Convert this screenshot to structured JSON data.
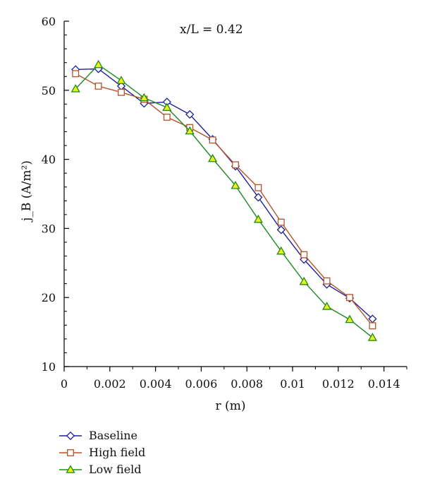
{
  "chart_data": {
    "type": "line",
    "annotation": "x/L = 0.42",
    "xlabel": "r (m)",
    "ylabel": "j_B (A/m²)",
    "xlim": [
      0,
      0.015
    ],
    "ylim": [
      10,
      60
    ],
    "xticks": [
      0,
      0.002,
      0.004,
      0.006,
      0.008,
      0.01,
      0.012,
      0.014
    ],
    "xtick_labels": [
      "0",
      "0.002",
      "0.004",
      "0.006",
      "0.008",
      "0.01",
      "0.012",
      "0.014"
    ],
    "yticks": [
      10,
      20,
      30,
      40,
      50,
      60
    ],
    "ytick_labels": [
      "10",
      "20",
      "30",
      "40",
      "50",
      "60"
    ],
    "grid": false,
    "legend_position": "bottom-left",
    "series": [
      {
        "name": "Baseline",
        "marker": "diamond",
        "color": "#1f1f9e",
        "x": [
          0.0005,
          0.0015,
          0.0025,
          0.0035,
          0.0045,
          0.0055,
          0.0065,
          0.0075,
          0.0085,
          0.0095,
          0.0105,
          0.0115,
          0.0125,
          0.0135
        ],
        "y": [
          53.0,
          53.1,
          50.6,
          48.1,
          48.3,
          46.5,
          42.9,
          39.0,
          34.5,
          29.8,
          25.5,
          21.9,
          19.9,
          16.9
        ]
      },
      {
        "name": "High field",
        "marker": "square",
        "color": "#b5532a",
        "x": [
          0.0005,
          0.0015,
          0.0025,
          0.0035,
          0.0045,
          0.0055,
          0.0065,
          0.0075,
          0.0085,
          0.0095,
          0.0105,
          0.0115,
          0.0125,
          0.0135
        ],
        "y": [
          52.4,
          50.6,
          49.7,
          48.7,
          46.1,
          44.6,
          42.8,
          39.2,
          35.9,
          30.9,
          26.2,
          22.4,
          20.0,
          15.9
        ]
      },
      {
        "name": "Low field",
        "marker": "triangle",
        "color": "#1e8a1e",
        "fill": "#e8f218",
        "x": [
          0.0005,
          0.0015,
          0.0025,
          0.0035,
          0.0045,
          0.0055,
          0.0065,
          0.0075,
          0.0085,
          0.0095,
          0.0105,
          0.0115,
          0.0125,
          0.0135
        ],
        "y": [
          50.2,
          53.7,
          51.4,
          48.9,
          47.5,
          44.1,
          40.1,
          36.2,
          31.3,
          26.7,
          22.3,
          18.7,
          16.8,
          14.2
        ]
      }
    ]
  }
}
